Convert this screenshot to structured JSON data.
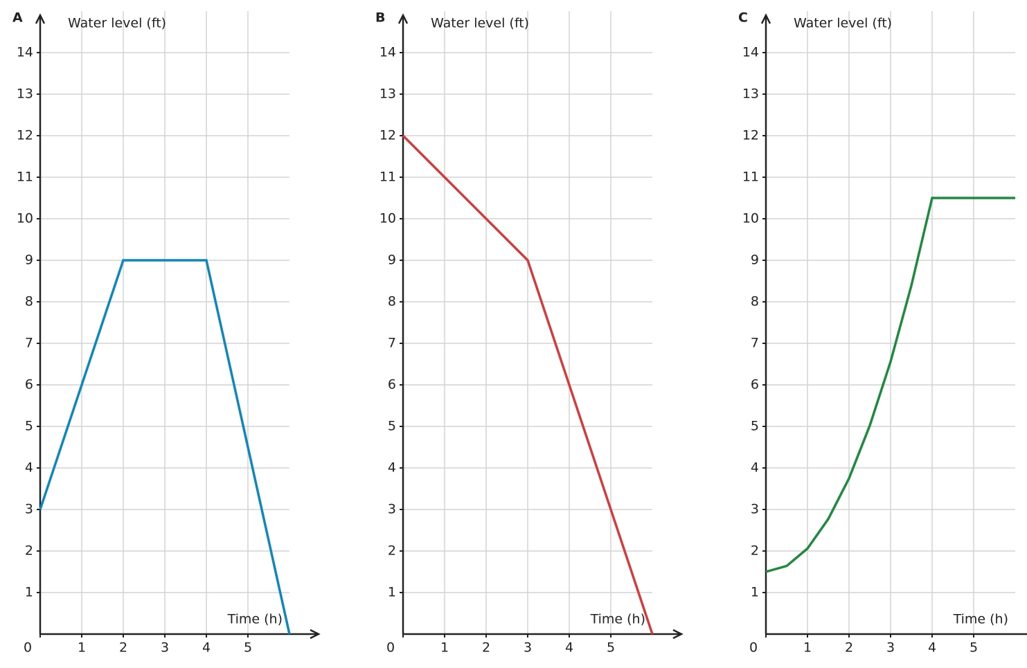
{
  "chart_data": [
    {
      "type": "line",
      "label": "A",
      "y_label": "Water level (ft)",
      "x_label": "Time (h)",
      "x": [
        0,
        2,
        4,
        6
      ],
      "values": [
        3,
        9,
        9,
        0
      ],
      "color": "#0f87bd",
      "xlim": [
        0,
        6
      ],
      "ylim": [
        0,
        14
      ],
      "xticks": [
        0,
        1,
        2,
        3,
        4,
        5
      ],
      "yticks": [
        1,
        2,
        3,
        4,
        5,
        6,
        7,
        8,
        9,
        10,
        11,
        12,
        13,
        14
      ],
      "grid": true
    },
    {
      "type": "line",
      "label": "B",
      "y_label": "Water level (ft)",
      "x_label": "Time (h)",
      "x": [
        0,
        3,
        6
      ],
      "values": [
        12,
        9,
        0
      ],
      "color": "#d33c3c",
      "xlim": [
        0,
        6
      ],
      "ylim": [
        0,
        14
      ],
      "xticks": [
        0,
        1,
        2,
        3,
        4,
        5
      ],
      "yticks": [
        1,
        2,
        3,
        4,
        5,
        6,
        7,
        8,
        9,
        10,
        11,
        12,
        13,
        14
      ],
      "grid": true
    },
    {
      "type": "line",
      "label": "C",
      "y_label": "Water level (ft)",
      "x_label": "Time (h)",
      "x": [
        0,
        0.5,
        1,
        1.5,
        2,
        2.5,
        3,
        3.5,
        4,
        6
      ],
      "values": [
        1.5,
        1.64,
        2.06,
        2.77,
        3.75,
        5.02,
        6.56,
        8.39,
        10.5,
        10.5
      ],
      "color": "#1d8a3e",
      "xlim": [
        0,
        6
      ],
      "ylim": [
        0,
        14
      ],
      "xticks": [
        0,
        1,
        2,
        3,
        4,
        5
      ],
      "yticks": [
        1,
        2,
        3,
        4,
        5,
        6,
        7,
        8,
        9,
        10,
        11,
        12,
        13,
        14
      ],
      "grid": true
    }
  ]
}
